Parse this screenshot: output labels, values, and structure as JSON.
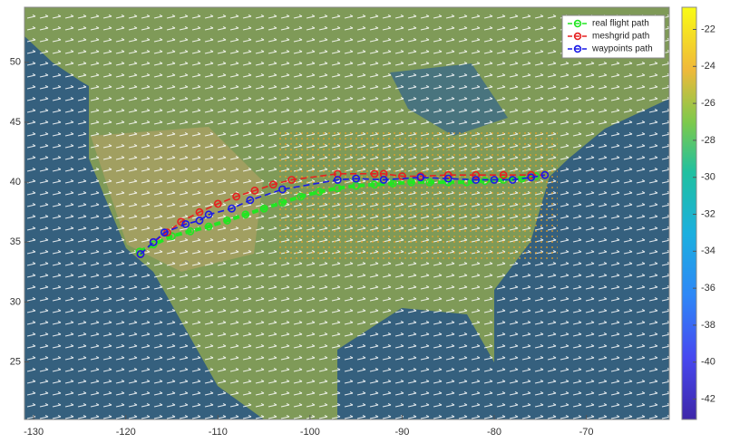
{
  "chart_data": {
    "type": "line",
    "xlim": [
      -131,
      -61
    ],
    "ylim": [
      20.2,
      54.6
    ],
    "xticks": [
      -130,
      -120,
      -110,
      -100,
      -90,
      -80,
      -70
    ],
    "yticks": [
      25,
      30,
      35,
      40,
      45,
      50
    ],
    "legend": "upper right",
    "series": [
      {
        "name": "real flight path",
        "color": "#22e622",
        "x": [
          -118.5,
          -117,
          -115,
          -113,
          -111,
          -109,
          -107,
          -105,
          -103,
          -101,
          -99,
          -97,
          -95,
          -93,
          -91,
          -89,
          -87,
          -85,
          -83,
          -81,
          -79,
          -77,
          -75.5
        ],
        "values": [
          34.2,
          34.8,
          35.5,
          35.9,
          36.3,
          36.8,
          37.3,
          37.8,
          38.3,
          38.8,
          39.2,
          39.5,
          39.7,
          39.8,
          39.9,
          40,
          40,
          40,
          40,
          40.1,
          40.2,
          40.3,
          40.5
        ]
      },
      {
        "name": "meshgrid path",
        "color": "#e62020",
        "x": [
          -118.4,
          -117,
          -115.5,
          -114,
          -112,
          -110,
          -108,
          -106,
          -104,
          -102,
          -97,
          -93,
          -92,
          -90,
          -88,
          -85,
          -82,
          -79,
          -76,
          -74.5
        ],
        "values": [
          34,
          35,
          35.8,
          36.7,
          37.5,
          38.2,
          38.8,
          39.3,
          39.8,
          40.2,
          40.7,
          40.7,
          40.7,
          40.5,
          40.5,
          40.6,
          40.6,
          40.6,
          40.6,
          40.6
        ]
      },
      {
        "name": "waypoints path",
        "color": "#1a1ae6",
        "x": [
          -118.4,
          -117,
          -115.8,
          -113.5,
          -112,
          -111,
          -108.5,
          -106.5,
          -103,
          -97,
          -95,
          -92,
          -88,
          -85,
          -82,
          -80,
          -78,
          -76,
          -74.5
        ],
        "values": [
          34,
          35,
          35.8,
          36.5,
          36.8,
          37.3,
          37.8,
          38.5,
          39.4,
          40.2,
          40.3,
          40.2,
          40.4,
          40.3,
          40.2,
          40.2,
          40.2,
          40.4,
          40.6
        ]
      }
    ],
    "colorbar": {
      "lim": [
        -43.1,
        -20.8
      ],
      "ticks": [
        -22,
        -24,
        -26,
        -28,
        -30,
        -32,
        -34,
        -36,
        -38,
        -40,
        -42
      ]
    }
  }
}
